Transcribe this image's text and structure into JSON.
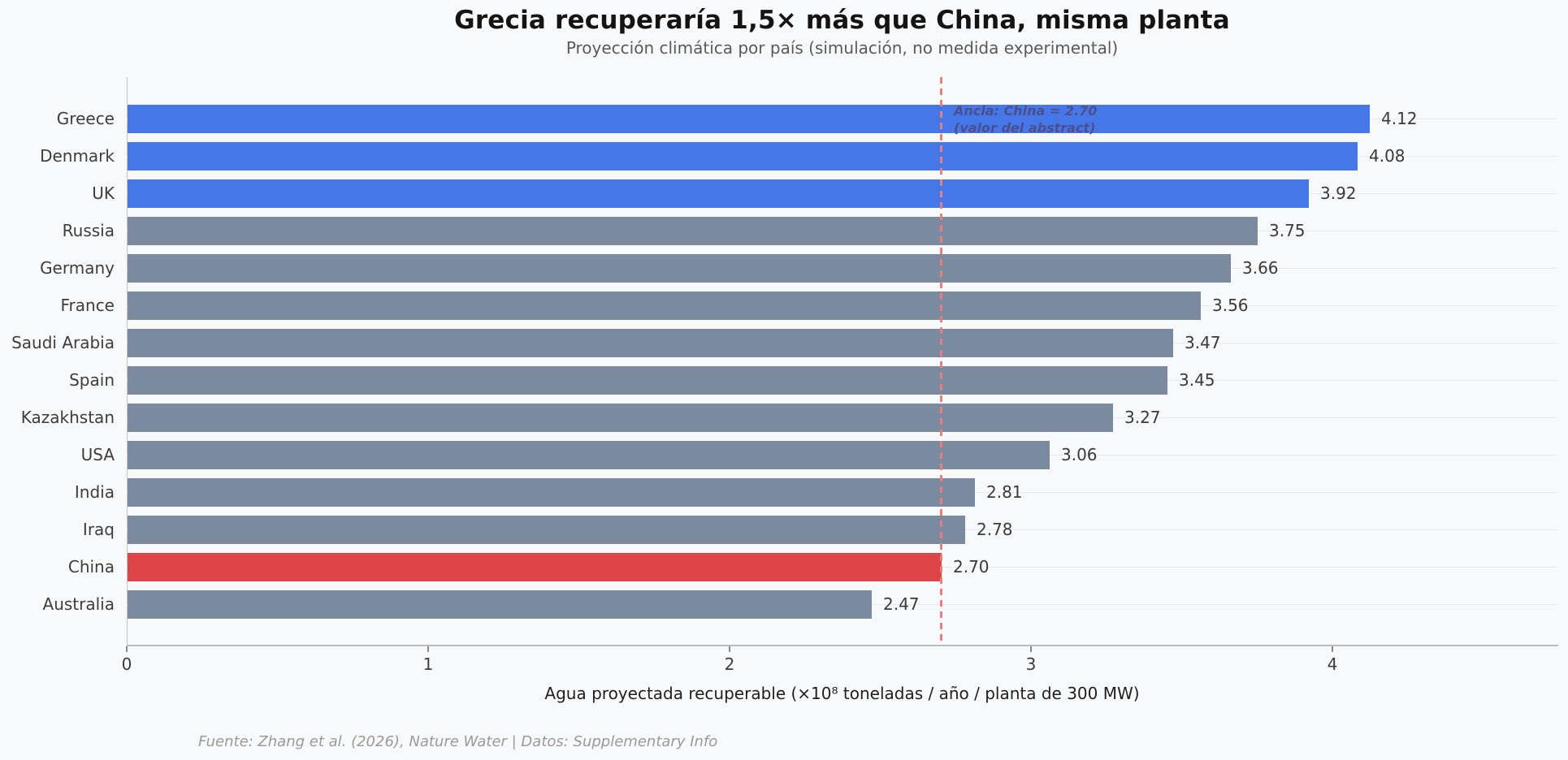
{
  "chart_data": {
    "type": "bar",
    "orientation": "horizontal",
    "title": "Grecia recuperaría 1,5× más que China, misma planta",
    "subtitle": "Proyección climática por país (simulación, no medida experimental)",
    "xlabel": "Agua proyectada recuperable (×10⁸ toneladas / año / planta de 300 MW)",
    "xlim": [
      0,
      4.75
    ],
    "x_ticks": [
      0,
      1,
      2,
      3,
      4
    ],
    "x_tick_labels": [
      "0",
      "1",
      "2",
      "3",
      "4"
    ],
    "grid": "horizontal-only",
    "legend": "none",
    "categories": [
      "Greece",
      "Denmark",
      "UK",
      "Russia",
      "Germany",
      "France",
      "Saudi Arabia",
      "Spain",
      "Kazakhstan",
      "USA",
      "India",
      "Iraq",
      "China",
      "Australia"
    ],
    "values": [
      4.12,
      4.08,
      3.92,
      3.75,
      3.66,
      3.56,
      3.47,
      3.45,
      3.27,
      3.06,
      2.81,
      2.78,
      2.7,
      2.47
    ],
    "bars": [
      {
        "label": "Greece",
        "value": 4.12,
        "value_label": "4.12",
        "color": "#4677e8"
      },
      {
        "label": "Denmark",
        "value": 4.08,
        "value_label": "4.08",
        "color": "#4677e8"
      },
      {
        "label": "UK",
        "value": 3.92,
        "value_label": "3.92",
        "color": "#4677e8"
      },
      {
        "label": "Russia",
        "value": 3.75,
        "value_label": "3.75",
        "color": "#7b8a9e"
      },
      {
        "label": "Germany",
        "value": 3.66,
        "value_label": "3.66",
        "color": "#7b8a9e"
      },
      {
        "label": "France",
        "value": 3.56,
        "value_label": "3.56",
        "color": "#7b8a9e"
      },
      {
        "label": "Saudi Arabia",
        "value": 3.47,
        "value_label": "3.47",
        "color": "#7b8a9e"
      },
      {
        "label": "Spain",
        "value": 3.45,
        "value_label": "3.45",
        "color": "#7b8a9e"
      },
      {
        "label": "Kazakhstan",
        "value": 3.27,
        "value_label": "3.27",
        "color": "#7b8a9e"
      },
      {
        "label": "USA",
        "value": 3.06,
        "value_label": "3.06",
        "color": "#7b8a9e"
      },
      {
        "label": "India",
        "value": 2.81,
        "value_label": "2.81",
        "color": "#7b8a9e"
      },
      {
        "label": "Iraq",
        "value": 2.78,
        "value_label": "2.78",
        "color": "#7b8a9e"
      },
      {
        "label": "China",
        "value": 2.7,
        "value_label": "2.70",
        "color": "#dd4448"
      },
      {
        "label": "Australia",
        "value": 2.47,
        "value_label": "2.47",
        "color": "#7b8a9e"
      }
    ],
    "anchor_line": {
      "value": 2.7,
      "style": "dashed",
      "color": "#e87f7f",
      "label_line1": "Ancla: China = 2.70",
      "label_line2": "(valor del abstract)",
      "label_color": "#4c4f8e"
    },
    "colors": {
      "highlight": "#4677e8",
      "default": "#7b8a9e",
      "anchor_bar": "#dd4448",
      "background": "#f8f9fa"
    }
  },
  "footer": {
    "source": "Fuente: Zhang et al. (2026), Nature Water | Datos: Supplementary Info"
  }
}
